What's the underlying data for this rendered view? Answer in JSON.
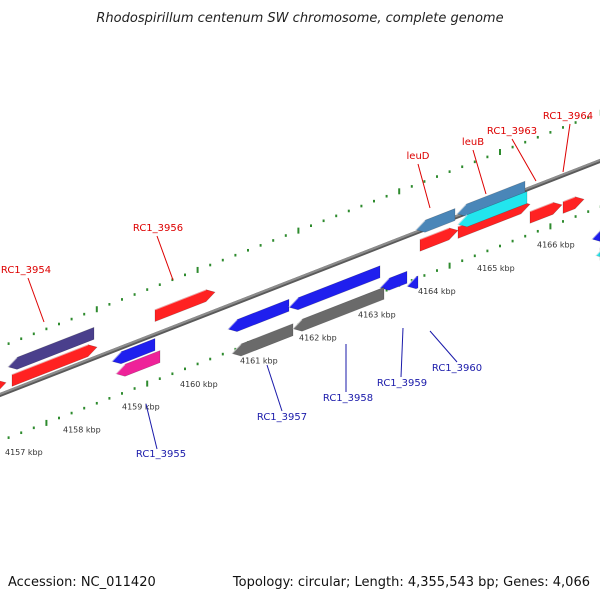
{
  "title": "Rhodospirillum centenum SW chromosome, complete genome",
  "footer": {
    "accession": "Accession: NC_011420",
    "summary": "Topology: circular; Length: 4,355,543 bp; Genes: 4,066"
  },
  "colors": {
    "forward_label": "#dd0000",
    "reverse_label": "#1a1aaa",
    "backbone": "#8c8c8c",
    "tick": "#2e8b2e",
    "red": "#ff2222",
    "blue": "#1f1fee",
    "purple": "#4a3f8c",
    "pink": "#ee2299",
    "gray": "#6a6a6a",
    "steelblue": "#4a86b8",
    "cyan": "#22e5ee"
  },
  "scale_labels": [
    "4157 kbp",
    "4158 kbp",
    "4159 kbp",
    "4160 kbp",
    "4161 kbp",
    "4162 kbp",
    "4163 kbp",
    "4164 kbp",
    "4165 kbp",
    "4166 kbp"
  ],
  "forward_gene_labels": [
    "RC1_3954",
    "RC1_3956",
    "leuD",
    "leuB",
    "RC1_3963",
    "RC1_3964"
  ],
  "reverse_gene_labels": [
    "RC1_3955",
    "RC1_3957",
    "RC1_3958",
    "RC1_3959",
    "RC1_3960"
  ]
}
